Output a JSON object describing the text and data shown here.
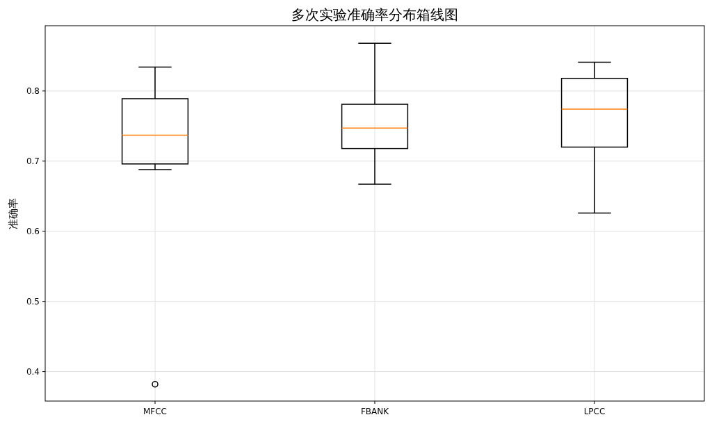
{
  "chart_data": {
    "type": "box",
    "title": "多次实验准确率分布箱线图",
    "ylabel": "准确率",
    "categories": [
      "MFCC",
      "FBANK",
      "LPCC"
    ],
    "boxes": [
      {
        "low": 0.688,
        "q1": 0.696,
        "median": 0.737,
        "q3": 0.789,
        "high": 0.834,
        "outliers": [
          0.382
        ]
      },
      {
        "low": 0.667,
        "q1": 0.718,
        "median": 0.747,
        "q3": 0.781,
        "high": 0.868
      },
      {
        "low": 0.626,
        "q1": 0.72,
        "median": 0.774,
        "q3": 0.818,
        "high": 0.841
      }
    ],
    "color": "#000000",
    "ylim": [
      0.358,
      0.893
    ],
    "yticks": [
      0.4,
      0.5,
      0.6,
      0.7,
      0.8
    ],
    "grid": true
  }
}
